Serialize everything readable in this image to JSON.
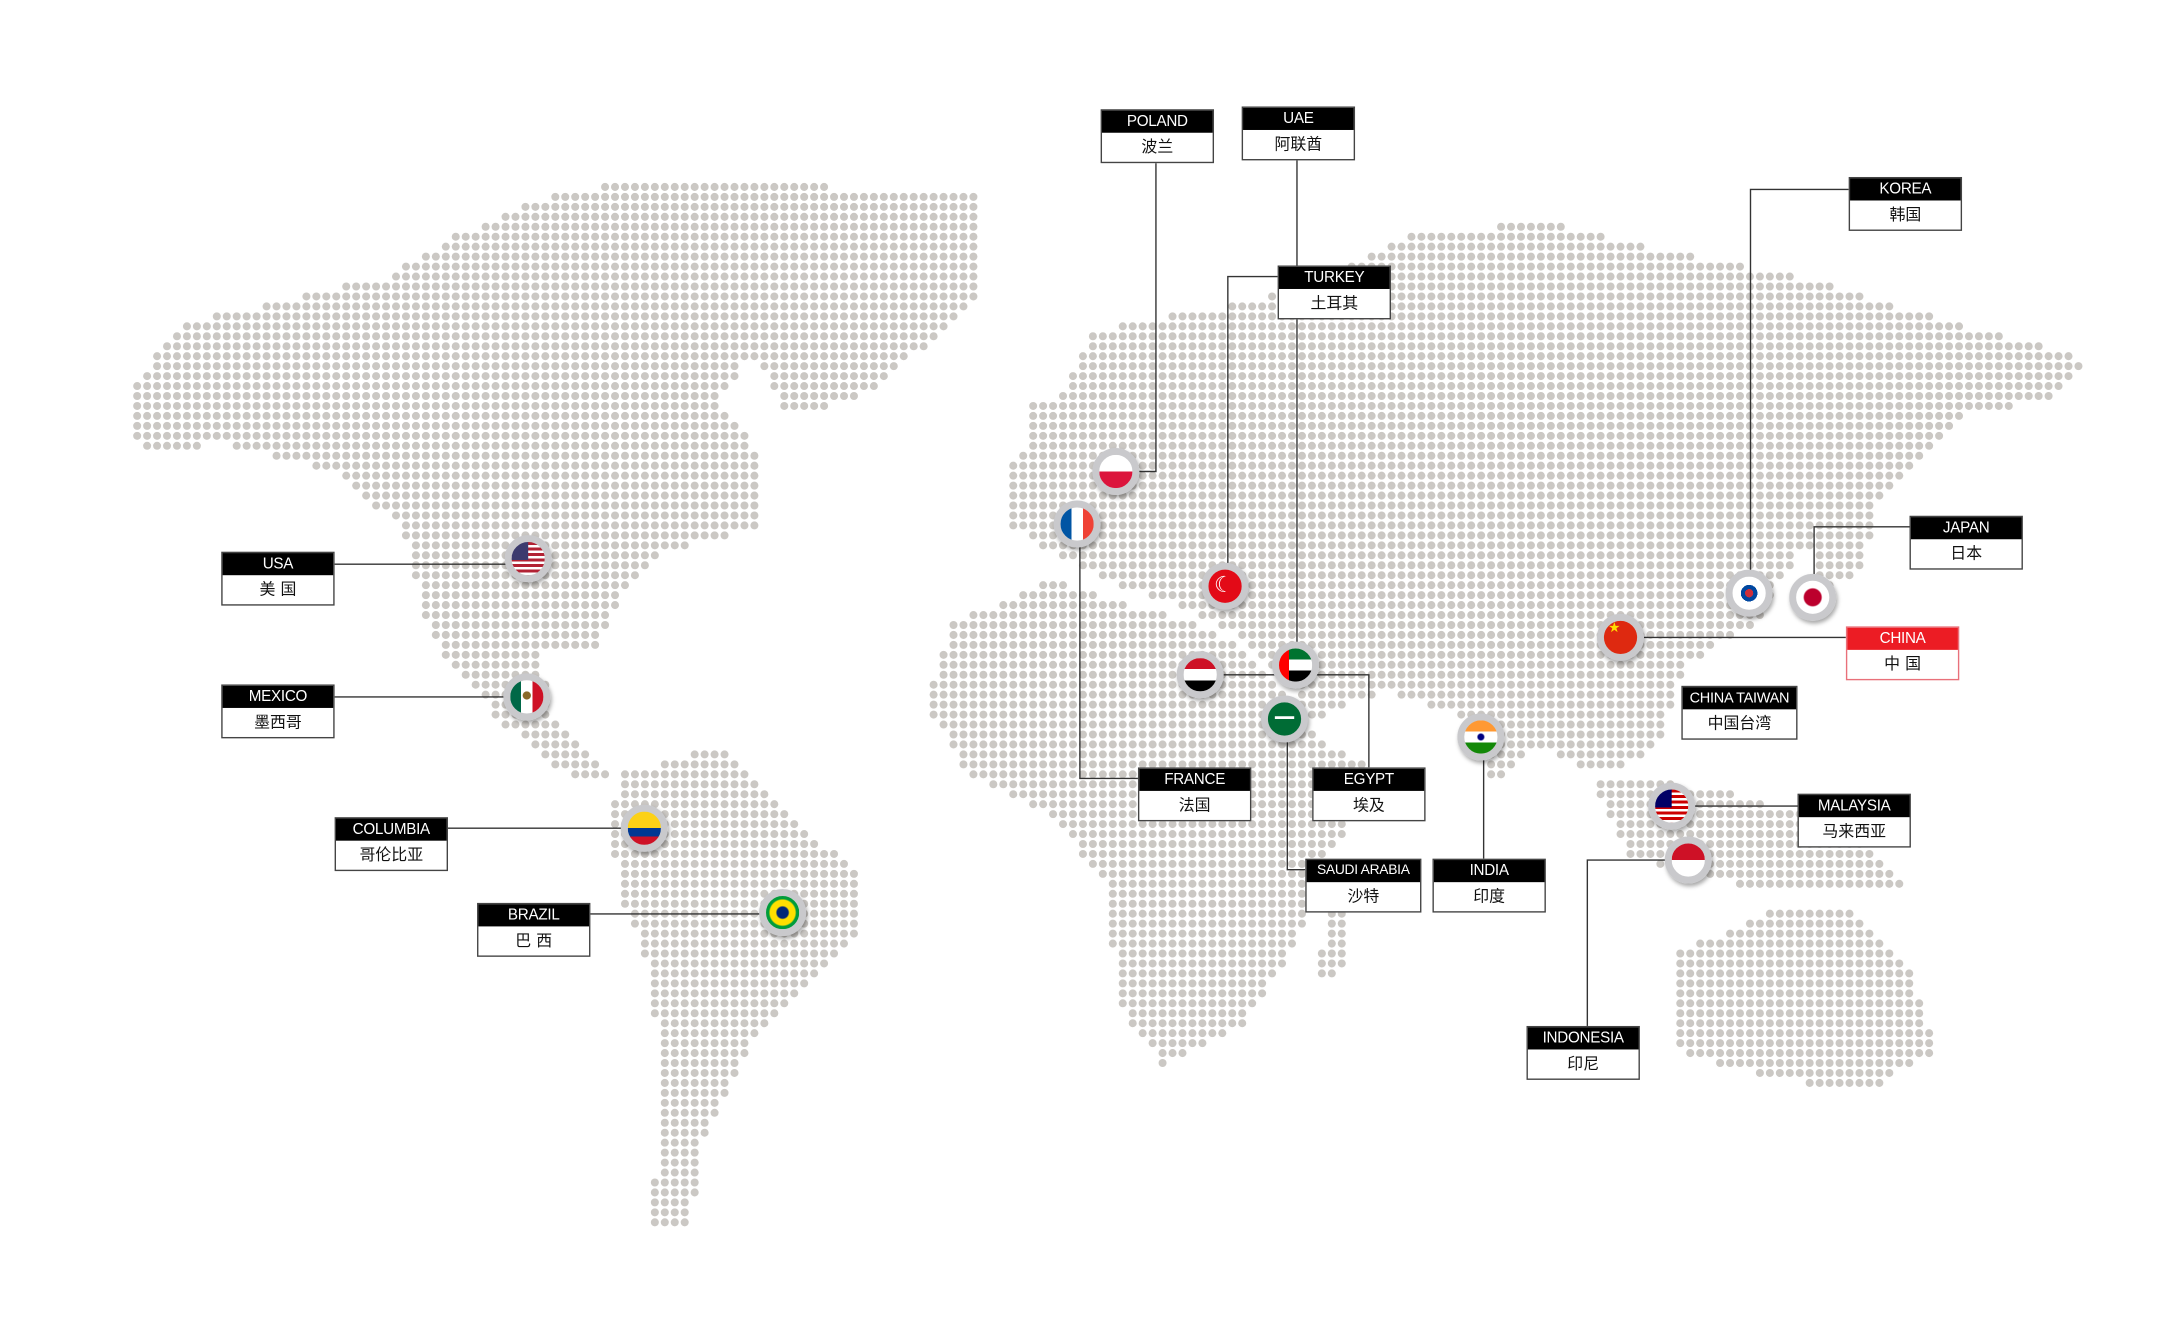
{
  "map": {
    "dot_color": "#cbc8c4",
    "line_color": "#333333"
  },
  "labels": {
    "usa": {
      "en": "USA",
      "zh": "美 国"
    },
    "mexico": {
      "en": "MEXICO",
      "zh": "墨西哥"
    },
    "columbia": {
      "en": "COLUMBIA",
      "zh": "哥伦比亚"
    },
    "brazil": {
      "en": "BRAZIL",
      "zh": "巴 西"
    },
    "poland": {
      "en": "POLAND",
      "zh": "波兰"
    },
    "uae": {
      "en": "UAE",
      "zh": "阿联酋"
    },
    "turkey": {
      "en": "TURKEY",
      "zh": "土耳其"
    },
    "france": {
      "en": "FRANCE",
      "zh": "法国"
    },
    "egypt": {
      "en": "EGYPT",
      "zh": "埃及"
    },
    "saudi": {
      "en": "SAUDI ARABIA",
      "zh": "沙特"
    },
    "india": {
      "en": "INDIA",
      "zh": "印度"
    },
    "korea": {
      "en": "KOREA",
      "zh": "韩国"
    },
    "japan": {
      "en": "JAPAN",
      "zh": "日本"
    },
    "china": {
      "en": "CHINA",
      "zh": "中 国",
      "highlight": "#ec1c24"
    },
    "taiwan": {
      "en": "CHINA TAIWAN",
      "zh": "中国台湾"
    },
    "malaysia": {
      "en": "MALAYSIA",
      "zh": "马来西亚"
    },
    "indonesia": {
      "en": "INDONESIA",
      "zh": "印尼"
    }
  }
}
